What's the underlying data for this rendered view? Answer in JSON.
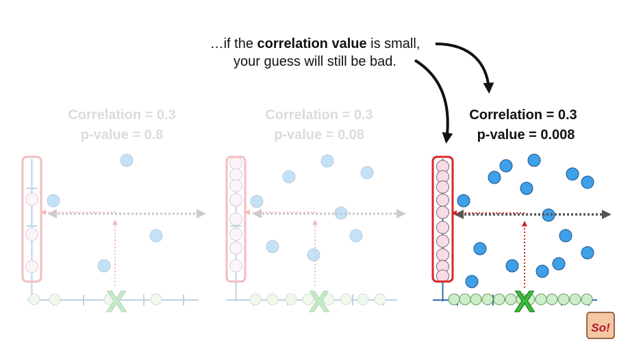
{
  "caption": {
    "line1_prefix": "…if the ",
    "line1_bold": "correlation value",
    "line1_suffix": " is small,",
    "line2": "your guess will still be bad."
  },
  "panels": [
    {
      "correlation_label": "Correlation = 0.3",
      "pvalue_label": "p-value = 0.8",
      "faded": true
    },
    {
      "correlation_label": "Correlation = 0.3",
      "pvalue_label": "p-value = 0.08",
      "faded": true
    },
    {
      "correlation_label": "Correlation = 0.3",
      "pvalue_label": "p-value = 0.008",
      "faded": false
    }
  ],
  "guess_marker": "X",
  "logo_text": "So!",
  "colors": {
    "point_fill": "#3da0e8",
    "point_stroke": "#1d4f8a",
    "x_axis_point": "#cdeec8",
    "y_axis_point": "#f9dce6",
    "highlight_box": "#d9262b",
    "guess_x": "#3bbf3b",
    "guess_arrow": "#cc2222",
    "spread_arrow": "#555555"
  }
}
